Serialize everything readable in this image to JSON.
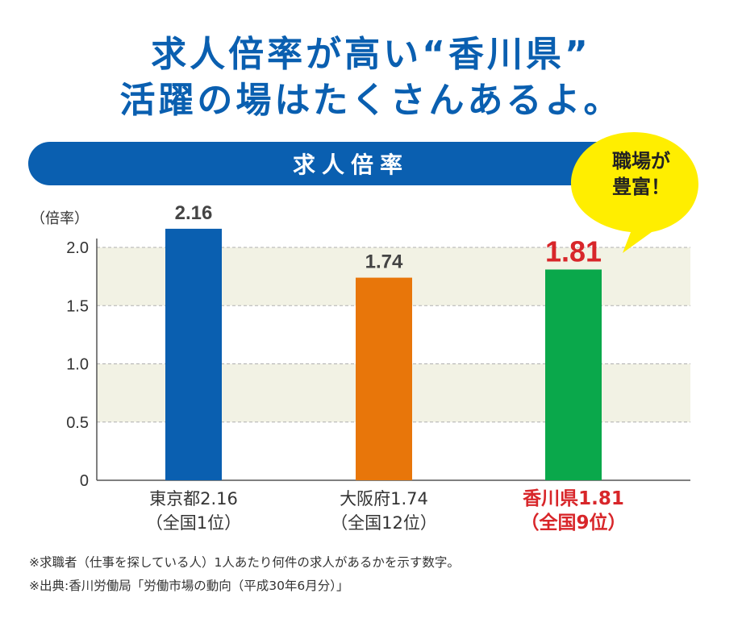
{
  "headline": {
    "line1": "求人倍率が高い“香川県”",
    "line2": "活躍の場はたくさんあるよ。"
  },
  "banner_title": "求人倍率",
  "bubble": {
    "line1": "職場が",
    "line2": "豊富！"
  },
  "colors": {
    "brand_blue": "#0a5fb0",
    "tokyo": "#0a5fb0",
    "osaka": "#e8760a",
    "kagawa": "#0aa84b",
    "highlight_red": "#d8262a",
    "band": "#f2f2e4",
    "bubble_yellow": "#ffee00"
  },
  "chart_data": {
    "type": "bar",
    "title": "求人倍率",
    "ylabel": "（倍率）",
    "ylim": [
      0,
      2.0
    ],
    "yticks": [
      "0",
      "0.5",
      "1.0",
      "1.5",
      "2.0"
    ],
    "grid": true,
    "categories": [
      {
        "line1": "東京都2.16",
        "line2": "（全国1位）",
        "highlight": false
      },
      {
        "line1": "大阪府1.74",
        "line2": "（全国12位）",
        "highlight": false
      },
      {
        "line1": "香川県1.81",
        "line2": "（全国9位）",
        "highlight": true
      }
    ],
    "values": [
      2.16,
      1.74,
      1.81
    ],
    "value_labels": [
      "2.16",
      "1.74",
      "1.81"
    ]
  },
  "footnotes": [
    "※求職者（仕事を探している人）1人あたり何件の求人があるかを示す数字。",
    "※出典:香川労働局「労働市場の動向（平成30年6月分）」"
  ]
}
